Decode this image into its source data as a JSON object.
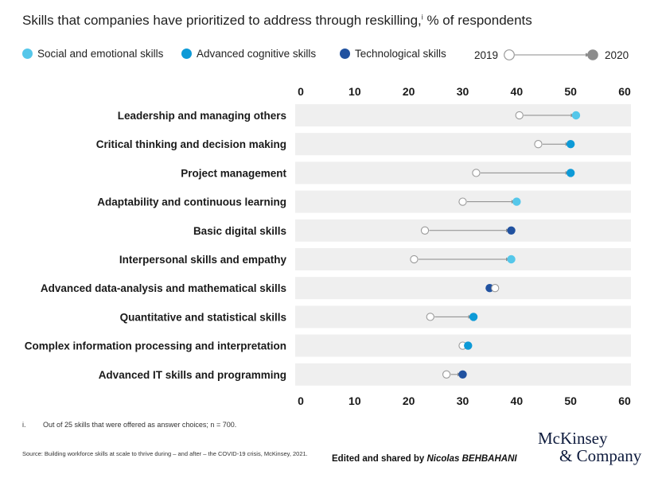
{
  "header": {
    "title": "Skills that companies have prioritized to address through reskilling,",
    "title_superscript": "i",
    "title_suffix": " % of respondents"
  },
  "legend": {
    "items": [
      {
        "label": "Social and emotional skills",
        "color": "#55c7ea"
      },
      {
        "label": "Advanced cognitive skills",
        "color": "#0d9ad7"
      },
      {
        "label": "Technological skills",
        "color": "#2152a0"
      }
    ],
    "year_start": "2019",
    "year_end": "2020"
  },
  "chart_data": {
    "type": "dumbbell",
    "x_ticks": [
      "0",
      "10",
      "20",
      "30",
      "40",
      "50",
      "60"
    ],
    "xlim": [
      0,
      60
    ],
    "grid": false,
    "series_names": [
      "2019",
      "2020"
    ],
    "categories": [
      {
        "label": "Leadership and managing others",
        "y2019": 40.5,
        "y2020": 51,
        "group": "Social and emotional skills"
      },
      {
        "label": "Critical thinking and decision making",
        "y2019": 44,
        "y2020": 50,
        "group": "Advanced cognitive skills"
      },
      {
        "label": "Project management",
        "y2019": 32.5,
        "y2020": 50,
        "group": "Advanced cognitive skills"
      },
      {
        "label": "Adaptability and continuous learning",
        "y2019": 30,
        "y2020": 40,
        "group": "Social and emotional skills"
      },
      {
        "label": "Basic digital skills",
        "y2019": 23,
        "y2020": 39,
        "group": "Technological skills"
      },
      {
        "label": "Interpersonal skills and empathy",
        "y2019": 21,
        "y2020": 39,
        "group": "Social and emotional skills"
      },
      {
        "label": "Advanced data-analysis and mathematical skills",
        "y2019": 36,
        "y2020": 35,
        "group": "Technological skills"
      },
      {
        "label": "Quantitative and statistical skills",
        "y2019": 24,
        "y2020": 32,
        "group": "Advanced cognitive skills"
      },
      {
        "label": "Complex information processing and interpretation",
        "y2019": 30,
        "y2020": 31,
        "group": "Advanced cognitive skills"
      },
      {
        "label": "Advanced IT skills and programming",
        "y2019": 27,
        "y2020": 30,
        "group": "Technological skills"
      }
    ]
  },
  "footnote": {
    "marker": "i.",
    "text": "Out of 25 skills that were offered as answer choices; n = 700."
  },
  "source": "Source: Building workforce skills at scale to thrive during – and after – the COVID-19 crisis, McKinsey, 2021.",
  "credit": {
    "prefix": "Edited and shared by ",
    "name": "Nicolas BEHBAHANI"
  },
  "brand": {
    "line1": "McKinsey",
    "line2": "& Company"
  },
  "colors": {
    "row_background": "#efefef",
    "connector": "#8a8a8a",
    "open_marker_stroke": "#9a9a9a",
    "filled_2020_legend": "#8c8c8c"
  }
}
